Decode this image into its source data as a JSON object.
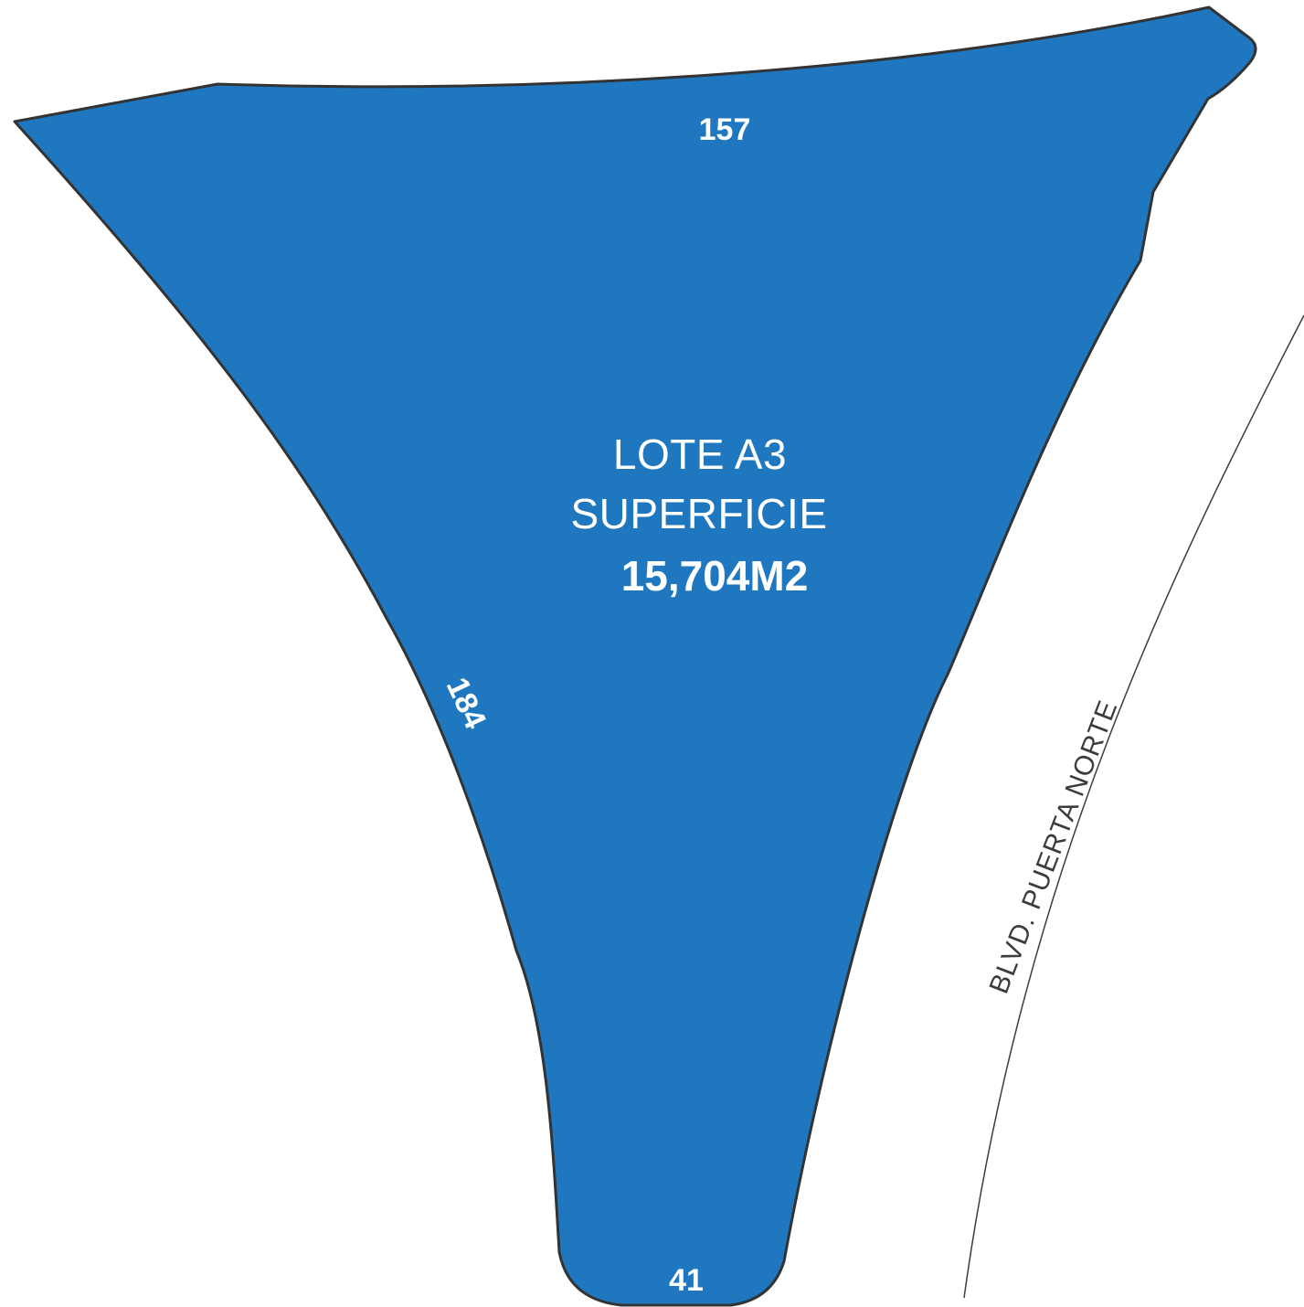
{
  "lot": {
    "name": "LOTE A3",
    "area_label": "SUPERFICIE",
    "area_value": "15,704M2",
    "fill_color": "#1f78bf",
    "outline_color": "#333333"
  },
  "sides": {
    "north": "157",
    "west": "184",
    "south": "41"
  },
  "street": {
    "name": "BLVD. PUERTA NORTE",
    "line_color": "#3c3c3c"
  }
}
